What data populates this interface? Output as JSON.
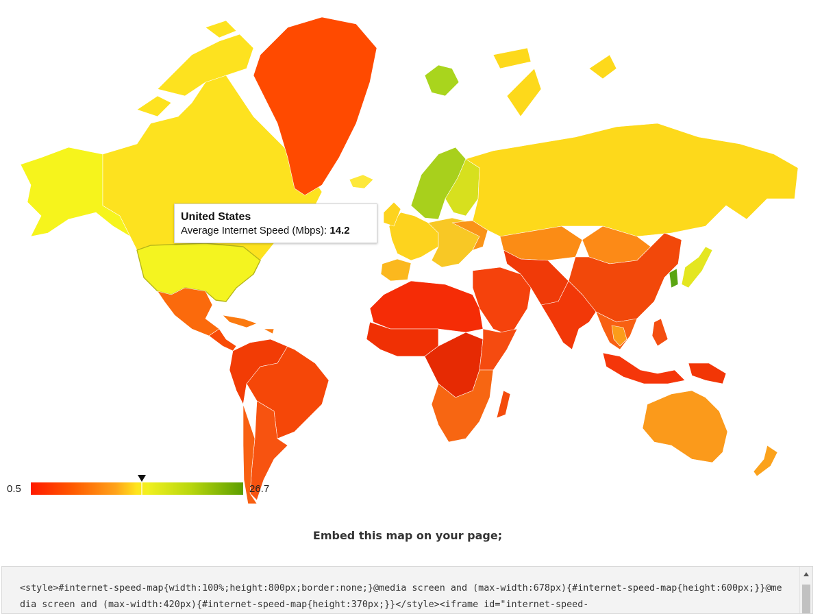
{
  "tooltip": {
    "country": "United States",
    "metric_label": "Average Internet Speed (Mbps):",
    "value": "14.2"
  },
  "legend": {
    "min": "0.5",
    "max": "26.7",
    "marker_value": 14.2,
    "colors": [
      "#ff1a00",
      "#ff5a00",
      "#ffa31a",
      "#ffe51c",
      "#b9d70e",
      "#5c9e00"
    ]
  },
  "embed": {
    "heading": "Embed this map on your page;",
    "code": "<style>#internet-speed-map{width:100%;height:800px;border:none;}@media screen and (max-width:678px){#internet-speed-map{height:600px;}}@media screen and (max-width:420px){#internet-speed-map{height:370px;}}</style><iframe id=\"internet-speed-"
  },
  "map": {
    "highlighted_country": "United States",
    "regions": [
      {
        "name": "Alaska",
        "color": "#f6f41c"
      },
      {
        "name": "Canada",
        "color": "#fde21f"
      },
      {
        "name": "United States",
        "color": "#f4f420"
      },
      {
        "name": "Greenland",
        "color": "#ff4a00"
      },
      {
        "name": "Mexico",
        "color": "#fb6a0c"
      },
      {
        "name": "Central America",
        "color": "#f84a06"
      },
      {
        "name": "Caribbean",
        "color": "#fb7a10"
      },
      {
        "name": "Brazil",
        "color": "#f54708"
      },
      {
        "name": "Andes",
        "color": "#f23c05"
      },
      {
        "name": "Argentina",
        "color": "#f75310"
      },
      {
        "name": "Chile",
        "color": "#f86012"
      },
      {
        "name": "Iceland",
        "color": "#fde83a"
      },
      {
        "name": "Scandinavia",
        "color": "#a8d01c"
      },
      {
        "name": "Finland",
        "color": "#d7e01e"
      },
      {
        "name": "Western Europe",
        "color": "#fdd31e"
      },
      {
        "name": "Iberia",
        "color": "#fbb81e"
      },
      {
        "name": "Eastern Europe",
        "color": "#f8c825"
      },
      {
        "name": "Ukraine",
        "color": "#fa9418"
      },
      {
        "name": "Russia",
        "color": "#fdd91b"
      },
      {
        "name": "Kazakhstan",
        "color": "#fb8c15"
      },
      {
        "name": "Mongolia",
        "color": "#fc8a17"
      },
      {
        "name": "China",
        "color": "#f2480a"
      },
      {
        "name": "Korea",
        "color": "#5aa512"
      },
      {
        "name": "Japan",
        "color": "#e4e620"
      },
      {
        "name": "Middle East",
        "color": "#f5420c"
      },
      {
        "name": "Central Asia",
        "color": "#f03a08"
      },
      {
        "name": "India",
        "color": "#f23808"
      },
      {
        "name": "Southeast Asia",
        "color": "#f86012"
      },
      {
        "name": "Thailand",
        "color": "#fb9d1a"
      },
      {
        "name": "Indonesia",
        "color": "#f5360a"
      },
      {
        "name": "Philippines",
        "color": "#f44e10"
      },
      {
        "name": "New Guinea",
        "color": "#f23606"
      },
      {
        "name": "North Africa",
        "color": "#f52c06"
      },
      {
        "name": "West Africa",
        "color": "#f03004"
      },
      {
        "name": "Central Africa",
        "color": "#e62a03"
      },
      {
        "name": "East Africa",
        "color": "#f54b10"
      },
      {
        "name": "Southern Africa",
        "color": "#f76612"
      },
      {
        "name": "Madagascar",
        "color": "#f44c0c"
      },
      {
        "name": "Australia",
        "color": "#fb9a1b"
      },
      {
        "name": "New Zealand",
        "color": "#fba21c"
      },
      {
        "name": "Svalbard",
        "color": "#a9d51d"
      }
    ]
  }
}
